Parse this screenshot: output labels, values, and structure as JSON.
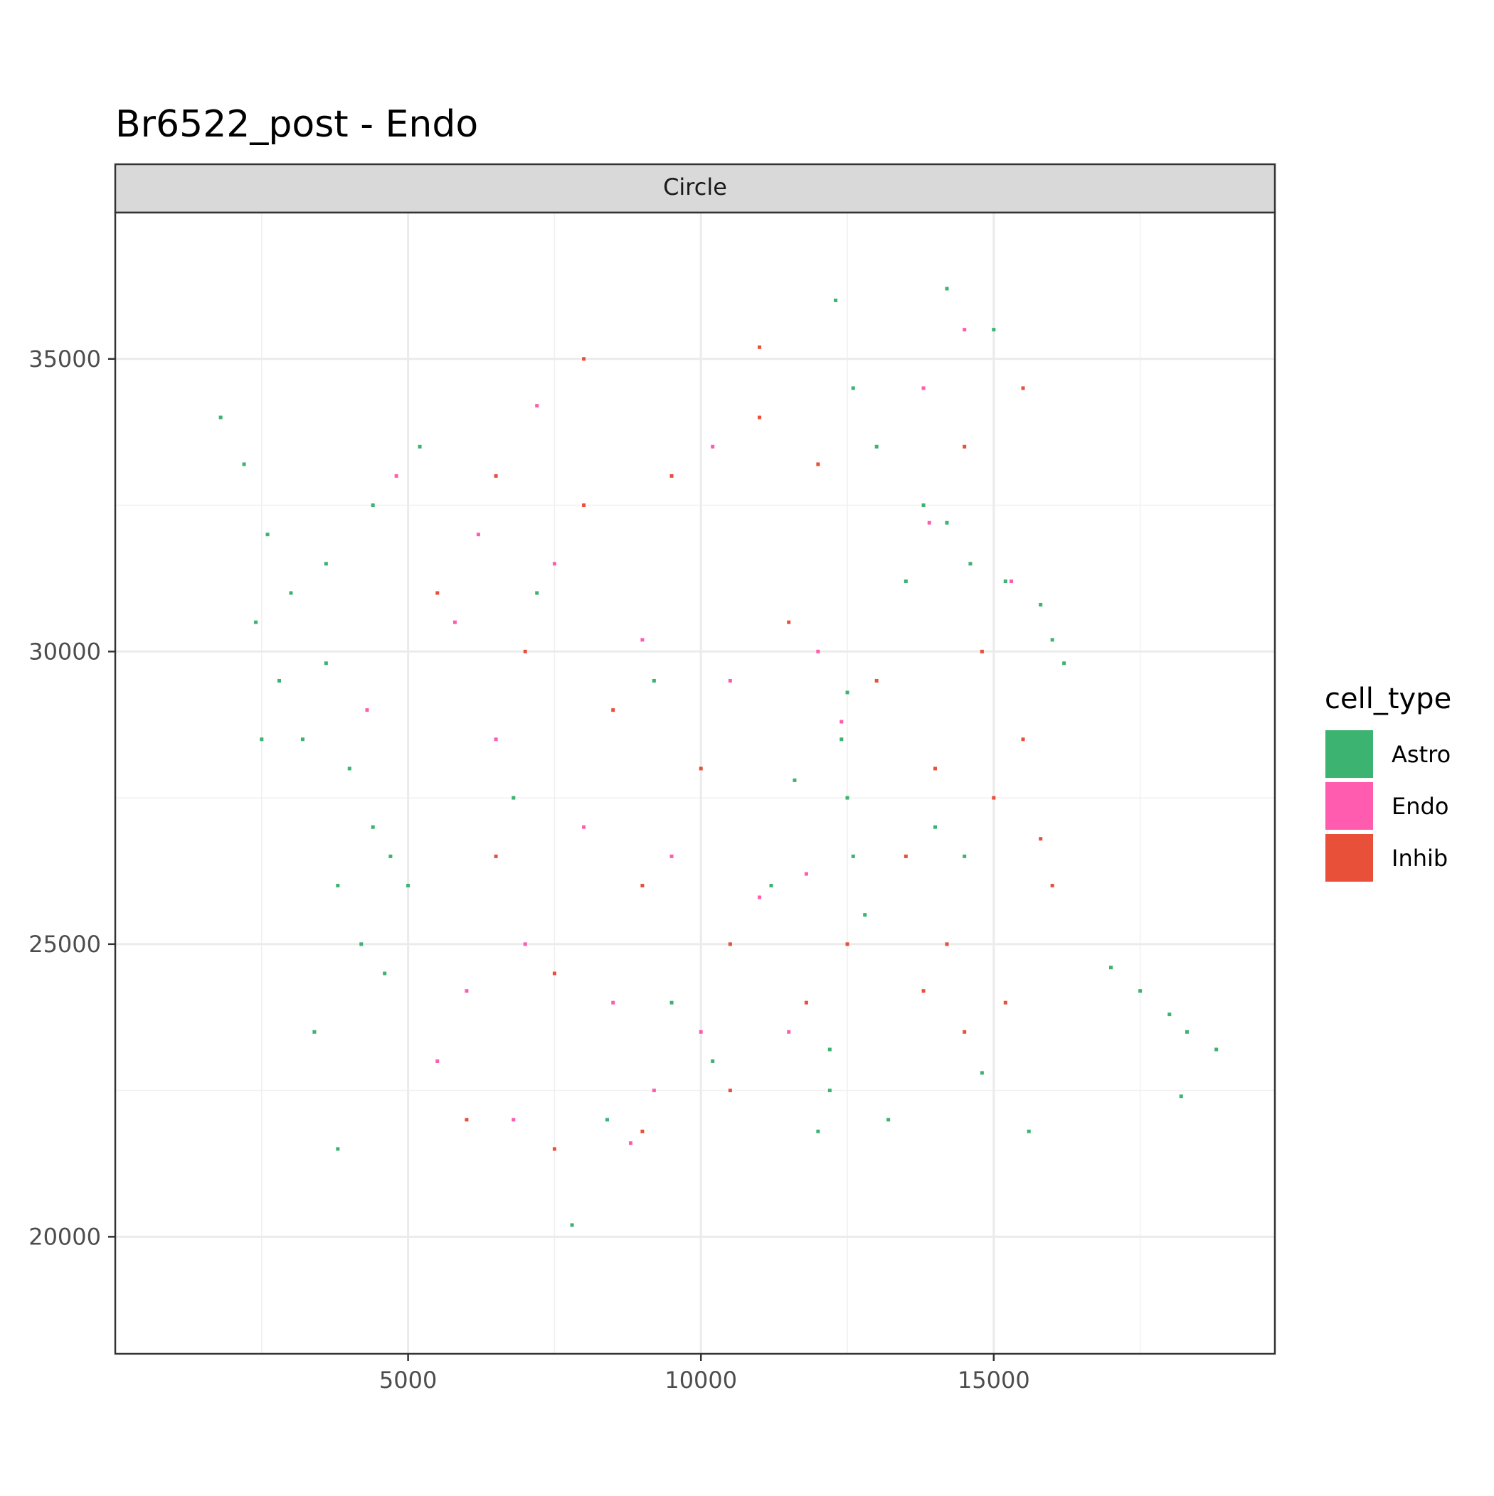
{
  "chart_data": {
    "type": "scatter",
    "title": "Br6522_post - Endo",
    "facet_label": "Circle",
    "xlabel": "",
    "ylabel": "",
    "xlim": [
      0,
      19800
    ],
    "ylim": [
      18000,
      37500
    ],
    "x_ticks": [
      5000,
      10000,
      15000
    ],
    "y_ticks": [
      20000,
      25000,
      30000,
      35000
    ],
    "x_tick_labels": [
      "5000",
      "10000",
      "15000"
    ],
    "y_tick_labels": [
      "20000",
      "25000",
      "30000",
      "35000"
    ],
    "grid": true,
    "legend": {
      "title": "cell_type",
      "placement": "right",
      "entries": [
        {
          "name": "Astro",
          "color": "#3CB371"
        },
        {
          "name": "Endo",
          "color": "#FF5CB0"
        },
        {
          "name": "Inhib",
          "color": "#E8503A"
        }
      ]
    },
    "series": [
      {
        "name": "Astro",
        "color": "#3CB371",
        "points": [
          [
            1800,
            34000
          ],
          [
            2200,
            33200
          ],
          [
            2600,
            32000
          ],
          [
            2400,
            30500
          ],
          [
            2800,
            29500
          ],
          [
            3200,
            28500
          ],
          [
            3600,
            29800
          ],
          [
            4000,
            28000
          ],
          [
            4400,
            27000
          ],
          [
            4700,
            26500
          ],
          [
            3800,
            26000
          ],
          [
            4200,
            25000
          ],
          [
            4600,
            24500
          ],
          [
            3600,
            31500
          ],
          [
            4400,
            32500
          ],
          [
            5200,
            33500
          ],
          [
            3000,
            31000
          ],
          [
            2500,
            28500
          ],
          [
            5000,
            26000
          ],
          [
            3400,
            23500
          ],
          [
            3800,
            21500
          ],
          [
            7200,
            31000
          ],
          [
            6800,
            27500
          ],
          [
            8400,
            22000
          ],
          [
            9200,
            29500
          ],
          [
            7800,
            20200
          ],
          [
            12300,
            36000
          ],
          [
            12600,
            34500
          ],
          [
            13000,
            33500
          ],
          [
            12500,
            29300
          ],
          [
            12400,
            28500
          ],
          [
            12500,
            27500
          ],
          [
            12600,
            26500
          ],
          [
            12800,
            25500
          ],
          [
            12200,
            23200
          ],
          [
            12200,
            22500
          ],
          [
            12000,
            21800
          ],
          [
            13800,
            32500
          ],
          [
            14200,
            32200
          ],
          [
            13500,
            31200
          ],
          [
            14600,
            31500
          ],
          [
            15200,
            31200
          ],
          [
            15800,
            30800
          ],
          [
            16000,
            30200
          ],
          [
            16200,
            29800
          ],
          [
            14000,
            27000
          ],
          [
            14500,
            26500
          ],
          [
            14800,
            22800
          ],
          [
            15600,
            21800
          ],
          [
            13200,
            22000
          ],
          [
            17000,
            24600
          ],
          [
            17500,
            24200
          ],
          [
            18000,
            23800
          ],
          [
            18300,
            23500
          ],
          [
            18200,
            22400
          ],
          [
            18800,
            23200
          ],
          [
            14200,
            36200
          ],
          [
            15000,
            35500
          ],
          [
            11600,
            27800
          ],
          [
            11200,
            26000
          ],
          [
            10200,
            23000
          ],
          [
            9500,
            24000
          ]
        ]
      },
      {
        "name": "Endo",
        "color": "#FF5CB0",
        "points": [
          [
            4800,
            33000
          ],
          [
            6200,
            32000
          ],
          [
            7500,
            31500
          ],
          [
            9000,
            30200
          ],
          [
            10500,
            29500
          ],
          [
            6500,
            28500
          ],
          [
            8000,
            27000
          ],
          [
            9500,
            26500
          ],
          [
            11000,
            25800
          ],
          [
            7000,
            25000
          ],
          [
            8500,
            24000
          ],
          [
            10000,
            23500
          ],
          [
            5500,
            23000
          ],
          [
            6800,
            22000
          ],
          [
            8800,
            21600
          ],
          [
            11500,
            23500
          ],
          [
            13900,
            32200
          ],
          [
            15300,
            31200
          ],
          [
            14500,
            35500
          ],
          [
            12400,
            28800
          ],
          [
            11800,
            26200
          ],
          [
            13800,
            34500
          ],
          [
            7200,
            34200
          ],
          [
            10200,
            33500
          ],
          [
            4300,
            29000
          ],
          [
            5800,
            30500
          ],
          [
            9200,
            22500
          ],
          [
            12000,
            30000
          ],
          [
            6000,
            24200
          ]
        ]
      },
      {
        "name": "Inhib",
        "color": "#E8503A",
        "points": [
          [
            6500,
            33000
          ],
          [
            8000,
            32500
          ],
          [
            9500,
            33000
          ],
          [
            11000,
            34000
          ],
          [
            12000,
            33200
          ],
          [
            7000,
            30000
          ],
          [
            8500,
            29000
          ],
          [
            10000,
            28000
          ],
          [
            11500,
            30500
          ],
          [
            9000,
            26000
          ],
          [
            7500,
            24500
          ],
          [
            10500,
            25000
          ],
          [
            6000,
            22000
          ],
          [
            7500,
            21500
          ],
          [
            9000,
            21800
          ],
          [
            10500,
            22500
          ],
          [
            11800,
            24000
          ],
          [
            13800,
            24200
          ],
          [
            14500,
            23500
          ],
          [
            15200,
            24000
          ],
          [
            14000,
            28000
          ],
          [
            15000,
            27500
          ],
          [
            15800,
            26800
          ],
          [
            16000,
            26000
          ],
          [
            15500,
            28500
          ],
          [
            13500,
            26500
          ],
          [
            14800,
            30000
          ],
          [
            15500,
            34500
          ],
          [
            14500,
            33500
          ],
          [
            11000,
            35200
          ],
          [
            8000,
            35000
          ],
          [
            5500,
            31000
          ],
          [
            6500,
            26500
          ],
          [
            12500,
            25000
          ],
          [
            14200,
            25000
          ],
          [
            13000,
            29500
          ]
        ]
      }
    ]
  }
}
